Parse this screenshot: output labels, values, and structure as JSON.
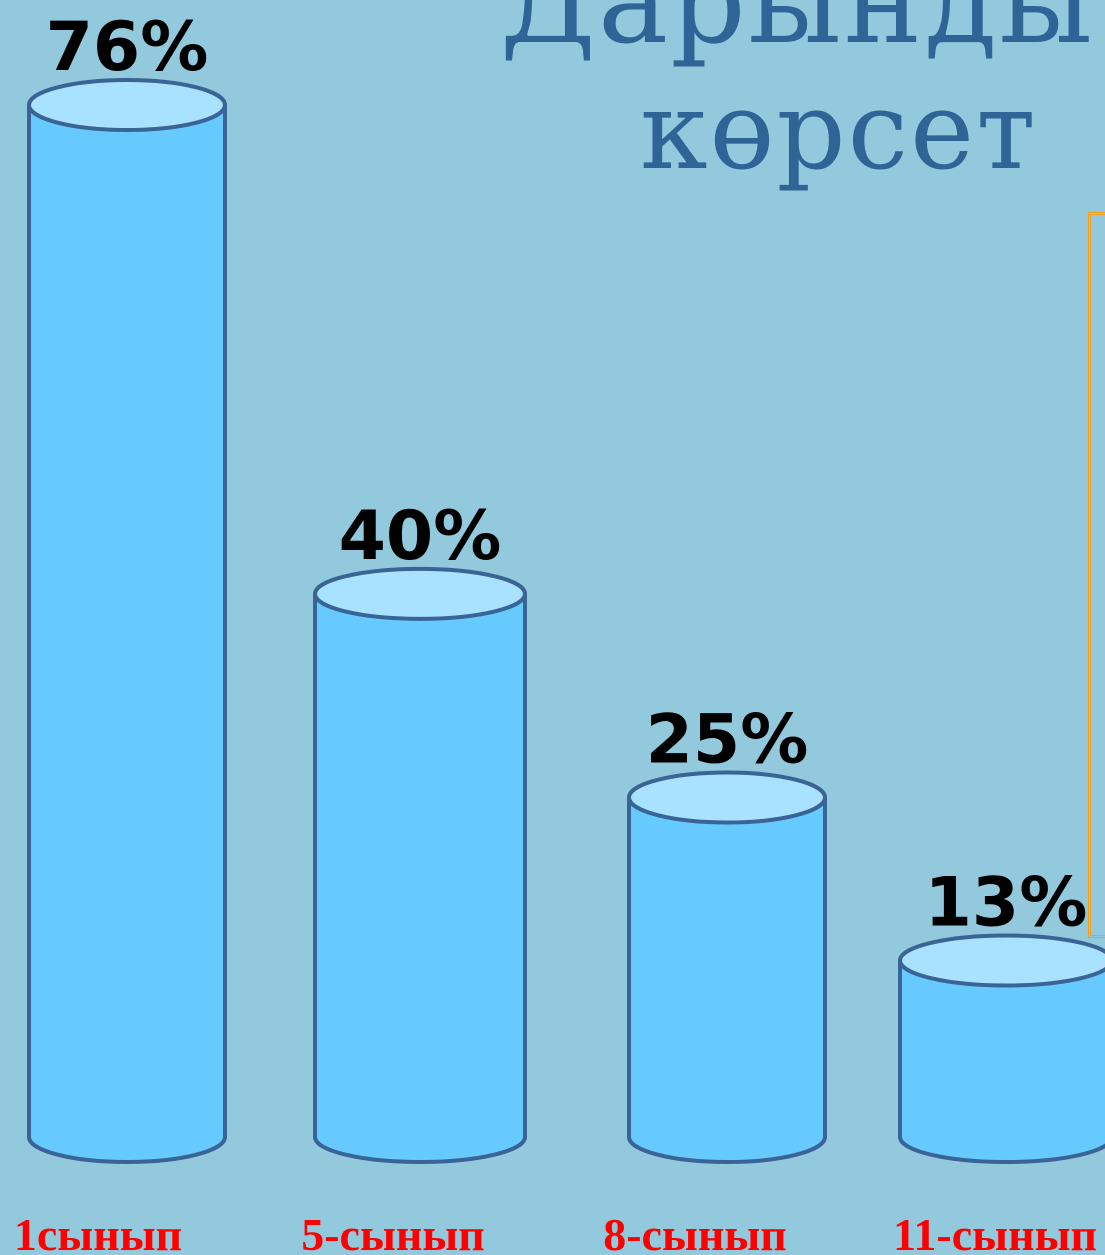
{
  "slide": {
    "title_line_1": "Дарынды",
    "title_line_2": "көрсет"
  },
  "colors": {
    "background": "#93c9dc",
    "cylinder_body": "#66caff",
    "cylinder_top": "#a9e2ff",
    "cylinder_outline": "#3a6396",
    "value_text": "#000000",
    "category_text": "#ff0000",
    "title_text": "#2e6496",
    "frame": "#f0a020"
  },
  "chart_data": {
    "type": "bar",
    "style": "cylinder",
    "categories": [
      "1сынып",
      "5-сынып",
      "8-сынып",
      "11-сынып"
    ],
    "values": [
      76,
      40,
      25,
      13
    ],
    "data_labels": [
      "76%",
      "40%",
      "25%",
      "13%"
    ],
    "unit": "%",
    "ylim": [
      0,
      76
    ],
    "grid": false,
    "legend": "none"
  }
}
